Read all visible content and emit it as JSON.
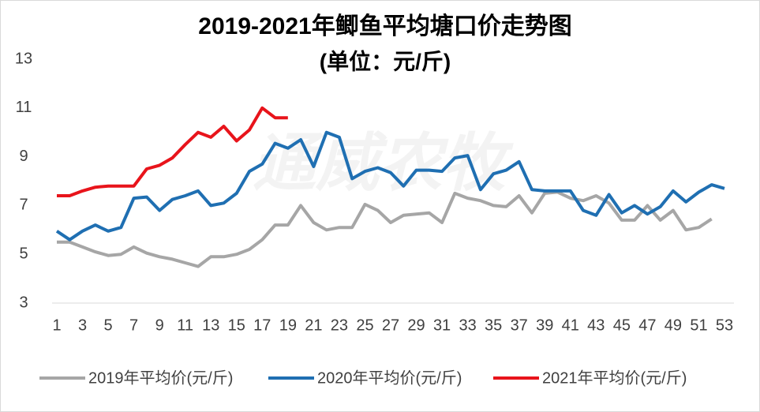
{
  "chart_data": {
    "type": "line",
    "title": "2019-2021年鲫鱼平均塘口价走势图",
    "subtitle": "(单位：元/斤)",
    "watermark": "通威农牧",
    "categories": [
      1,
      null,
      3,
      null,
      5,
      null,
      7,
      null,
      9,
      null,
      11,
      null,
      13,
      null,
      15,
      null,
      17,
      null,
      19,
      null,
      21,
      null,
      23,
      null,
      25,
      null,
      27,
      null,
      29,
      null,
      31,
      null,
      33,
      null,
      35,
      null,
      37,
      null,
      39,
      null,
      41,
      null,
      43,
      null,
      45,
      null,
      47,
      null,
      49,
      null,
      51,
      null,
      53
    ],
    "series": [
      {
        "name": "2019年平均价(元/斤)",
        "color": "#a6a6a6",
        "values": [
          5.5,
          5.5,
          5.3,
          5.1,
          4.95,
          5.0,
          5.3,
          5.05,
          4.9,
          4.8,
          4.65,
          4.5,
          4.9,
          4.9,
          5.0,
          5.2,
          5.6,
          6.2,
          6.2,
          7.0,
          6.3,
          6.0,
          6.1,
          6.1,
          7.05,
          6.8,
          6.3,
          6.6,
          6.65,
          6.7,
          6.3,
          7.5,
          7.3,
          7.2,
          7.0,
          6.95,
          7.4,
          6.7,
          7.5,
          7.55,
          7.3,
          7.2,
          7.4,
          7.1,
          6.4,
          6.4,
          7.0,
          6.4,
          6.8,
          6.0,
          6.1,
          6.45,
          null
        ]
      },
      {
        "name": "2020年平均价(元/斤)",
        "color": "#1f6fb2",
        "values": [
          5.95,
          5.6,
          5.95,
          6.2,
          5.95,
          6.1,
          7.3,
          7.35,
          6.8,
          7.25,
          7.4,
          7.6,
          7.0,
          7.1,
          7.5,
          8.4,
          8.7,
          9.55,
          9.35,
          9.7,
          8.6,
          10.0,
          9.8,
          8.1,
          8.4,
          8.55,
          8.35,
          7.8,
          8.45,
          8.45,
          8.4,
          8.95,
          9.05,
          7.65,
          8.3,
          8.45,
          8.8,
          7.65,
          7.6,
          7.6,
          7.6,
          6.8,
          6.6,
          7.45,
          6.7,
          7.0,
          6.65,
          6.95,
          7.6,
          7.15,
          7.55,
          7.85,
          7.7
        ]
      },
      {
        "name": "2021年平均价(元/斤)",
        "color": "#e8141b",
        "values": [
          7.4,
          7.4,
          7.6,
          7.75,
          7.8,
          7.8,
          7.8,
          8.5,
          8.65,
          8.95,
          9.5,
          10.0,
          9.8,
          10.25,
          9.65,
          10.1,
          11.0,
          10.6,
          10.6,
          null,
          null,
          null,
          null,
          null,
          null,
          null,
          null,
          null,
          null,
          null,
          null,
          null,
          null,
          null,
          null,
          null,
          null,
          null,
          null,
          null,
          null,
          null,
          null,
          null,
          null,
          null,
          null,
          null,
          null,
          null,
          null,
          null,
          null
        ]
      }
    ],
    "ylim": [
      3,
      13
    ],
    "yticks": [
      3,
      5,
      7,
      9,
      11,
      13
    ],
    "grid": false,
    "legend": "bottom"
  }
}
